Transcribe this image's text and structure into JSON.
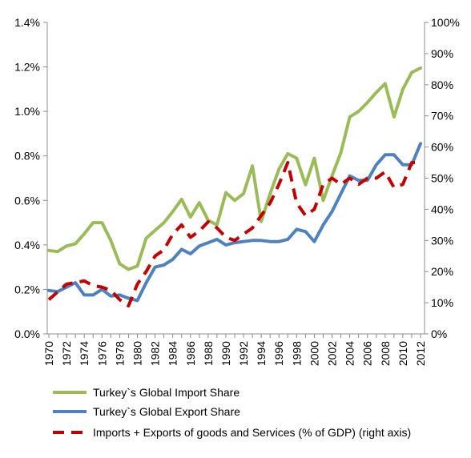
{
  "chart_data": {
    "type": "line",
    "title": "",
    "xlabel": "",
    "ylabel": "",
    "grid": false,
    "legend_position": "bottom",
    "x_tick_labels": [
      "1970",
      "1972",
      "1974",
      "1976",
      "1978",
      "1980",
      "1982",
      "1984",
      "1986",
      "1988",
      "1990",
      "1992",
      "1994",
      "1996",
      "1998",
      "2000",
      "2002",
      "2004",
      "2006",
      "2008",
      "2010",
      "2012"
    ],
    "y_left": {
      "range": [
        0,
        1.4
      ],
      "ticks": [
        0,
        0.2,
        0.4,
        0.6,
        0.8,
        1.0,
        1.2,
        1.4
      ],
      "tick_labels": [
        "0.0%",
        "0.2%",
        "0.4%",
        "0.6%",
        "0.8%",
        "1.0%",
        "1.2%",
        "1.4%"
      ]
    },
    "y_right": {
      "range": [
        0,
        100
      ],
      "ticks": [
        0,
        10,
        20,
        30,
        40,
        50,
        60,
        70,
        80,
        90,
        100
      ],
      "tick_labels": [
        "0%",
        "10%",
        "20%",
        "30%",
        "40%",
        "50%",
        "60%",
        "70%",
        "80%",
        "90%",
        "100%"
      ]
    },
    "x": [
      1970,
      1971,
      1972,
      1973,
      1974,
      1975,
      1976,
      1977,
      1978,
      1979,
      1980,
      1981,
      1982,
      1983,
      1984,
      1985,
      1986,
      1987,
      1988,
      1989,
      1990,
      1991,
      1992,
      1993,
      1994,
      1995,
      1996,
      1997,
      1998,
      1999,
      2000,
      2001,
      2002,
      2003,
      2004,
      2005,
      2006,
      2007,
      2008,
      2009,
      2010,
      2011,
      2012
    ],
    "series": [
      {
        "name": "Turkey`s Global Import Share",
        "axis": "left",
        "color": "#9BBB59",
        "style": "solid",
        "values": [
          0.375,
          0.37,
          0.395,
          0.405,
          0.45,
          0.5,
          0.5,
          0.42,
          0.315,
          0.29,
          0.305,
          0.43,
          0.465,
          0.5,
          0.55,
          0.605,
          0.525,
          0.59,
          0.51,
          0.49,
          0.635,
          0.6,
          0.63,
          0.755,
          0.505,
          0.63,
          0.74,
          0.81,
          0.79,
          0.67,
          0.79,
          0.6,
          0.71,
          0.815,
          0.975,
          1.0,
          1.04,
          1.085,
          1.125,
          0.975,
          1.1,
          1.175,
          1.195
        ]
      },
      {
        "name": "Turkey`s Global Export Share",
        "axis": "left",
        "color": "#4F81BD",
        "style": "solid",
        "values": [
          0.195,
          0.19,
          0.21,
          0.23,
          0.175,
          0.175,
          0.2,
          0.17,
          0.175,
          0.16,
          0.15,
          0.23,
          0.3,
          0.31,
          0.335,
          0.38,
          0.36,
          0.395,
          0.41,
          0.425,
          0.4,
          0.41,
          0.415,
          0.42,
          0.42,
          0.415,
          0.415,
          0.425,
          0.47,
          0.46,
          0.415,
          0.49,
          0.55,
          0.63,
          0.71,
          0.69,
          0.69,
          0.76,
          0.805,
          0.805,
          0.76,
          0.76,
          0.855
        ]
      },
      {
        "name": "Imports + Exports of goods and Services (% of GDP) (right axis)",
        "axis": "right",
        "color": "#C00000",
        "style": "dashed",
        "values": [
          11,
          13.5,
          16,
          16.5,
          17,
          15.5,
          15,
          14,
          11,
          9,
          16,
          20,
          25,
          27,
          32,
          35,
          31,
          33,
          36,
          34,
          31,
          30,
          32,
          34,
          38,
          42,
          48,
          55,
          42,
          38,
          40,
          48,
          50,
          48,
          50,
          48,
          50,
          50,
          52,
          47,
          48,
          55,
          55
        ]
      }
    ]
  }
}
